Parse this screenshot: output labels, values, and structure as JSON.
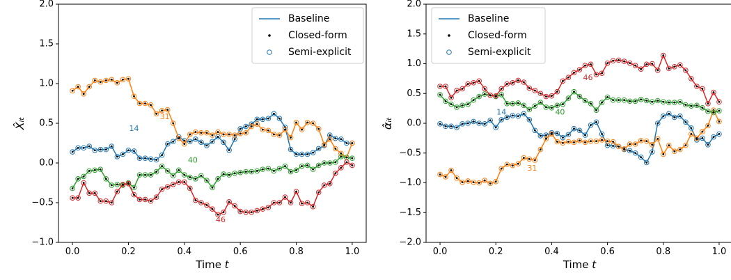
{
  "chart_data": [
    {
      "type": "line",
      "xlabel": "Time t",
      "ylabel": "X̂ᵢₜ",
      "xlim": [
        -0.05,
        1.05
      ],
      "ylim": [
        -1.0,
        2.0
      ],
      "xticks": [
        0.0,
        0.2,
        0.4,
        0.6,
        0.8,
        1.0
      ],
      "yticks": [
        -1.0,
        -0.5,
        0.0,
        0.5,
        1.0,
        1.5,
        2.0
      ],
      "tick_labels": {
        "x": [
          "0.0",
          "0.2",
          "0.4",
          "0.6",
          "0.8",
          "1.0"
        ],
        "y": [
          "−1.0",
          "−0.5",
          "0.0",
          "0.5",
          "1.0",
          "1.5",
          "2.0"
        ]
      },
      "grid": false,
      "legend": {
        "placement": "top-right",
        "entries": [
          "Baseline",
          "Closed-form",
          "Semi-explicit"
        ]
      },
      "series": [
        {
          "name": "14",
          "color": "#1f77b4",
          "label_at": [
            0.22,
            0.43
          ],
          "x": [
            0.0,
            0.02,
            0.04,
            0.06,
            0.08,
            0.1,
            0.12,
            0.14,
            0.16,
            0.18,
            0.2,
            0.22,
            0.24,
            0.26,
            0.28,
            0.3,
            0.32,
            0.34,
            0.36,
            0.38,
            0.4,
            0.42,
            0.44,
            0.46,
            0.48,
            0.5,
            0.52,
            0.54,
            0.56,
            0.58,
            0.6,
            0.62,
            0.64,
            0.66,
            0.68,
            0.7,
            0.72,
            0.74,
            0.76,
            0.78,
            0.8,
            0.82,
            0.84,
            0.86,
            0.88,
            0.9,
            0.92,
            0.94,
            0.96,
            0.98,
            1.0
          ],
          "y": [
            0.14,
            0.19,
            0.19,
            0.21,
            0.16,
            0.17,
            0.17,
            0.21,
            0.08,
            0.11,
            0.16,
            0.15,
            0.06,
            0.06,
            0.05,
            0.04,
            0.1,
            0.24,
            0.27,
            0.33,
            0.28,
            0.27,
            0.3,
            0.26,
            0.22,
            0.27,
            0.33,
            0.26,
            0.16,
            0.3,
            0.43,
            0.46,
            0.49,
            0.55,
            0.55,
            0.56,
            0.62,
            0.56,
            0.45,
            0.17,
            0.11,
            0.11,
            0.11,
            0.13,
            0.18,
            0.22,
            0.35,
            0.31,
            0.3,
            0.25,
            0.25
          ]
        },
        {
          "name": "31",
          "color": "#ff7f0e",
          "label_at": [
            0.33,
            0.58
          ],
          "x": [
            0.0,
            0.02,
            0.04,
            0.06,
            0.08,
            0.1,
            0.12,
            0.14,
            0.16,
            0.18,
            0.2,
            0.22,
            0.24,
            0.26,
            0.28,
            0.3,
            0.32,
            0.34,
            0.36,
            0.38,
            0.4,
            0.42,
            0.44,
            0.46,
            0.48,
            0.5,
            0.52,
            0.54,
            0.56,
            0.58,
            0.6,
            0.62,
            0.64,
            0.66,
            0.68,
            0.7,
            0.72,
            0.74,
            0.76,
            0.78,
            0.8,
            0.82,
            0.84,
            0.86,
            0.88,
            0.9,
            0.92,
            0.94,
            0.96,
            0.98,
            1.0
          ],
          "y": [
            0.91,
            0.96,
            0.87,
            0.96,
            1.04,
            1.02,
            1.04,
            1.05,
            1.01,
            1.05,
            1.06,
            0.84,
            0.75,
            0.75,
            0.73,
            0.62,
            0.66,
            0.67,
            0.5,
            0.31,
            0.24,
            0.36,
            0.39,
            0.38,
            0.38,
            0.35,
            0.39,
            0.36,
            0.36,
            0.35,
            0.37,
            0.38,
            0.46,
            0.49,
            0.42,
            0.41,
            0.36,
            0.35,
            0.42,
            0.32,
            0.51,
            0.42,
            0.51,
            0.5,
            0.43,
            0.23,
            0.3,
            0.18,
            0.12,
            0.07,
            0.25
          ]
        },
        {
          "name": "40",
          "color": "#2ca02c",
          "label_at": [
            0.43,
            0.03
          ],
          "x": [
            0.0,
            0.02,
            0.04,
            0.06,
            0.08,
            0.1,
            0.12,
            0.14,
            0.16,
            0.18,
            0.2,
            0.22,
            0.24,
            0.26,
            0.28,
            0.3,
            0.32,
            0.34,
            0.36,
            0.38,
            0.4,
            0.42,
            0.44,
            0.46,
            0.48,
            0.5,
            0.52,
            0.54,
            0.56,
            0.58,
            0.6,
            0.62,
            0.64,
            0.66,
            0.68,
            0.7,
            0.72,
            0.74,
            0.76,
            0.78,
            0.8,
            0.82,
            0.84,
            0.86,
            0.88,
            0.9,
            0.92,
            0.94,
            0.96,
            0.98,
            1.0
          ],
          "y": [
            -0.32,
            -0.2,
            -0.17,
            -0.1,
            -0.09,
            -0.08,
            -0.2,
            -0.28,
            -0.27,
            -0.28,
            -0.25,
            -0.31,
            -0.15,
            -0.15,
            -0.15,
            -0.11,
            -0.04,
            -0.1,
            -0.16,
            -0.09,
            -0.15,
            -0.18,
            -0.2,
            -0.16,
            -0.22,
            -0.31,
            -0.2,
            -0.14,
            -0.15,
            -0.13,
            -0.12,
            -0.11,
            -0.11,
            -0.1,
            -0.08,
            -0.07,
            -0.1,
            -0.07,
            -0.04,
            -0.11,
            -0.09,
            -0.04,
            -0.03,
            -0.08,
            -0.03,
            0.0,
            0.0,
            0.01,
            0.08,
            0.07,
            0.06
          ]
        },
        {
          "name": "46",
          "color": "#d62728",
          "label_at": [
            0.53,
            -0.72
          ],
          "x": [
            0.0,
            0.02,
            0.04,
            0.06,
            0.08,
            0.1,
            0.12,
            0.14,
            0.16,
            0.18,
            0.2,
            0.22,
            0.24,
            0.26,
            0.28,
            0.3,
            0.32,
            0.34,
            0.36,
            0.38,
            0.4,
            0.42,
            0.44,
            0.46,
            0.48,
            0.5,
            0.52,
            0.54,
            0.56,
            0.58,
            0.6,
            0.62,
            0.64,
            0.66,
            0.68,
            0.7,
            0.72,
            0.74,
            0.76,
            0.78,
            0.8,
            0.82,
            0.84,
            0.86,
            0.88,
            0.9,
            0.92,
            0.94,
            0.96,
            0.98,
            1.0
          ],
          "y": [
            -0.44,
            -0.44,
            -0.25,
            -0.38,
            -0.38,
            -0.48,
            -0.48,
            -0.5,
            -0.36,
            -0.27,
            -0.26,
            -0.4,
            -0.46,
            -0.46,
            -0.48,
            -0.43,
            -0.33,
            -0.3,
            -0.27,
            -0.24,
            -0.24,
            -0.32,
            -0.47,
            -0.5,
            -0.53,
            -0.58,
            -0.65,
            -0.62,
            -0.49,
            -0.54,
            -0.61,
            -0.62,
            -0.62,
            -0.6,
            -0.58,
            -0.56,
            -0.5,
            -0.5,
            -0.43,
            -0.5,
            -0.36,
            -0.51,
            -0.5,
            -0.55,
            -0.37,
            -0.28,
            -0.26,
            -0.13,
            -0.06,
            0.01,
            -0.03
          ]
        }
      ]
    },
    {
      "type": "line",
      "xlabel": "Time t",
      "ylabel": "α̂ᵢₜ",
      "xlim": [
        -0.05,
        1.05
      ],
      "ylim": [
        -2.0,
        2.0
      ],
      "xticks": [
        0.0,
        0.2,
        0.4,
        0.6,
        0.8,
        1.0
      ],
      "yticks": [
        -2.0,
        -1.5,
        -1.0,
        -0.5,
        0.0,
        0.5,
        1.0,
        1.5,
        2.0
      ],
      "tick_labels": {
        "x": [
          "0.0",
          "0.2",
          "0.4",
          "0.6",
          "0.8",
          "1.0"
        ],
        "y": [
          "−2.0",
          "−1.5",
          "−1.0",
          "−0.5",
          "0.0",
          "0.5",
          "1.0",
          "1.5",
          "2.0"
        ]
      },
      "grid": false,
      "legend": {
        "placement": "top-left",
        "entries": [
          "Baseline",
          "Closed-form",
          "Semi-explicit"
        ]
      },
      "series": [
        {
          "name": "14",
          "color": "#1f77b4",
          "label_at": [
            0.22,
            0.18
          ],
          "x": [
            0.0,
            0.02,
            0.04,
            0.06,
            0.08,
            0.1,
            0.12,
            0.14,
            0.16,
            0.18,
            0.2,
            0.22,
            0.24,
            0.26,
            0.28,
            0.3,
            0.32,
            0.34,
            0.36,
            0.38,
            0.4,
            0.42,
            0.44,
            0.46,
            0.48,
            0.5,
            0.52,
            0.54,
            0.56,
            0.58,
            0.6,
            0.62,
            0.64,
            0.66,
            0.68,
            0.7,
            0.72,
            0.74,
            0.76,
            0.78,
            0.8,
            0.82,
            0.84,
            0.86,
            0.88,
            0.9,
            0.92,
            0.94,
            0.96,
            0.98,
            1.0
          ],
          "y": [
            -0.01,
            -0.05,
            -0.05,
            -0.07,
            -0.01,
            0.0,
            0.03,
            0.0,
            -0.01,
            0.05,
            -0.07,
            0.06,
            0.1,
            0.13,
            0.12,
            0.16,
            0.06,
            -0.12,
            -0.21,
            -0.2,
            -0.16,
            -0.17,
            -0.24,
            -0.19,
            -0.09,
            -0.12,
            -0.2,
            -0.03,
            0.02,
            -0.18,
            -0.37,
            -0.38,
            -0.39,
            -0.44,
            -0.46,
            -0.5,
            -0.57,
            -0.66,
            -0.48,
            0.0,
            0.12,
            0.16,
            0.1,
            0.12,
            0.02,
            -0.08,
            -0.28,
            -0.25,
            -0.36,
            -0.23,
            -0.18
          ]
        },
        {
          "name": "31",
          "color": "#ff7f0e",
          "label_at": [
            0.33,
            -0.76
          ],
          "x": [
            0.0,
            0.02,
            0.04,
            0.06,
            0.08,
            0.1,
            0.12,
            0.14,
            0.16,
            0.18,
            0.2,
            0.22,
            0.24,
            0.26,
            0.28,
            0.3,
            0.32,
            0.34,
            0.36,
            0.38,
            0.4,
            0.42,
            0.44,
            0.46,
            0.48,
            0.5,
            0.52,
            0.54,
            0.56,
            0.58,
            0.6,
            0.62,
            0.64,
            0.66,
            0.68,
            0.7,
            0.72,
            0.74,
            0.76,
            0.78,
            0.8,
            0.82,
            0.84,
            0.86,
            0.88,
            0.9,
            0.92,
            0.94,
            0.96,
            0.98,
            1.0
          ],
          "y": [
            -0.86,
            -0.9,
            -0.79,
            -0.92,
            -0.99,
            -0.97,
            -0.99,
            -1.0,
            -0.96,
            -1.01,
            -0.98,
            -0.76,
            -0.69,
            -0.71,
            -0.68,
            -0.58,
            -0.6,
            -0.62,
            -0.44,
            -0.26,
            -0.18,
            -0.31,
            -0.33,
            -0.31,
            -0.32,
            -0.29,
            -0.32,
            -0.3,
            -0.3,
            -0.28,
            -0.3,
            -0.31,
            -0.39,
            -0.43,
            -0.35,
            -0.35,
            -0.29,
            -0.3,
            -0.36,
            -0.26,
            -0.52,
            -0.37,
            -0.47,
            -0.44,
            -0.37,
            -0.18,
            -0.25,
            -0.14,
            -0.04,
            0.22,
            0.03
          ]
        },
        {
          "name": "40",
          "color": "#2ca02c",
          "label_at": [
            0.43,
            0.18
          ],
          "x": [
            0.0,
            0.02,
            0.04,
            0.06,
            0.08,
            0.1,
            0.12,
            0.14,
            0.16,
            0.18,
            0.2,
            0.22,
            0.24,
            0.26,
            0.28,
            0.3,
            0.32,
            0.34,
            0.36,
            0.38,
            0.4,
            0.42,
            0.44,
            0.46,
            0.48,
            0.5,
            0.52,
            0.54,
            0.56,
            0.58,
            0.6,
            0.62,
            0.64,
            0.66,
            0.68,
            0.7,
            0.72,
            0.74,
            0.76,
            0.78,
            0.8,
            0.82,
            0.84,
            0.86,
            0.88,
            0.9,
            0.92,
            0.94,
            0.96,
            0.98,
            1.0
          ],
          "y": [
            0.48,
            0.37,
            0.32,
            0.27,
            0.3,
            0.32,
            0.39,
            0.45,
            0.49,
            0.47,
            0.45,
            0.48,
            0.33,
            0.33,
            0.34,
            0.3,
            0.23,
            0.29,
            0.35,
            0.27,
            0.26,
            0.3,
            0.32,
            0.42,
            0.53,
            0.45,
            0.38,
            0.33,
            0.22,
            0.35,
            0.44,
            0.39,
            0.39,
            0.39,
            0.37,
            0.37,
            0.4,
            0.38,
            0.36,
            0.38,
            0.36,
            0.35,
            0.35,
            0.36,
            0.31,
            0.29,
            0.3,
            0.26,
            0.2,
            0.18,
            0.21
          ]
        },
        {
          "name": "46",
          "color": "#d62728",
          "label_at": [
            0.53,
            0.76
          ],
          "x": [
            0.0,
            0.02,
            0.04,
            0.06,
            0.08,
            0.1,
            0.12,
            0.14,
            0.16,
            0.18,
            0.2,
            0.22,
            0.24,
            0.26,
            0.28,
            0.3,
            0.32,
            0.34,
            0.36,
            0.38,
            0.4,
            0.42,
            0.44,
            0.46,
            0.48,
            0.5,
            0.52,
            0.54,
            0.56,
            0.58,
            0.6,
            0.62,
            0.64,
            0.66,
            0.68,
            0.7,
            0.72,
            0.74,
            0.76,
            0.78,
            0.8,
            0.82,
            0.84,
            0.86,
            0.88,
            0.9,
            0.92,
            0.94,
            0.96,
            0.98,
            1.0
          ],
          "y": [
            0.62,
            0.62,
            0.43,
            0.55,
            0.58,
            0.66,
            0.68,
            0.71,
            0.58,
            0.47,
            0.46,
            0.58,
            0.66,
            0.68,
            0.72,
            0.69,
            0.59,
            0.55,
            0.5,
            0.45,
            0.46,
            0.53,
            0.71,
            0.77,
            0.85,
            0.9,
            0.97,
            0.99,
            0.82,
            0.84,
            1.01,
            1.05,
            1.06,
            1.04,
            1.01,
            0.97,
            0.91,
            0.99,
            1.0,
            0.89,
            1.14,
            0.92,
            0.95,
            0.98,
            0.89,
            0.75,
            0.62,
            0.58,
            0.33,
            0.52,
            0.36
          ]
        }
      ]
    }
  ]
}
